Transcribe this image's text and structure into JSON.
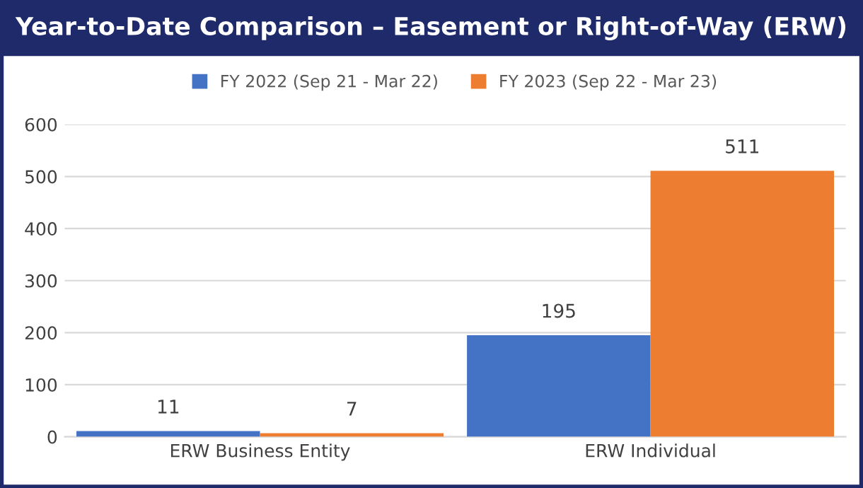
{
  "chart_data": {
    "type": "bar",
    "title": "Year-to-Date Comparison – Easement or Right-of-Way (ERW)",
    "categories": [
      "ERW Business Entity",
      "ERW Individual"
    ],
    "series": [
      {
        "name": "FY 2022 (Sep 21 - Mar 22)",
        "color": "#4472c4",
        "values": [
          11,
          195
        ]
      },
      {
        "name": "FY 2023 (Sep 22 - Mar 23)",
        "color": "#ed7d31",
        "values": [
          7,
          511
        ]
      }
    ],
    "ylim": [
      0,
      600
    ],
    "yticks": [
      0,
      100,
      200,
      300,
      400,
      500,
      600
    ],
    "grid": "y",
    "legend": "top",
    "data_labels": true
  }
}
